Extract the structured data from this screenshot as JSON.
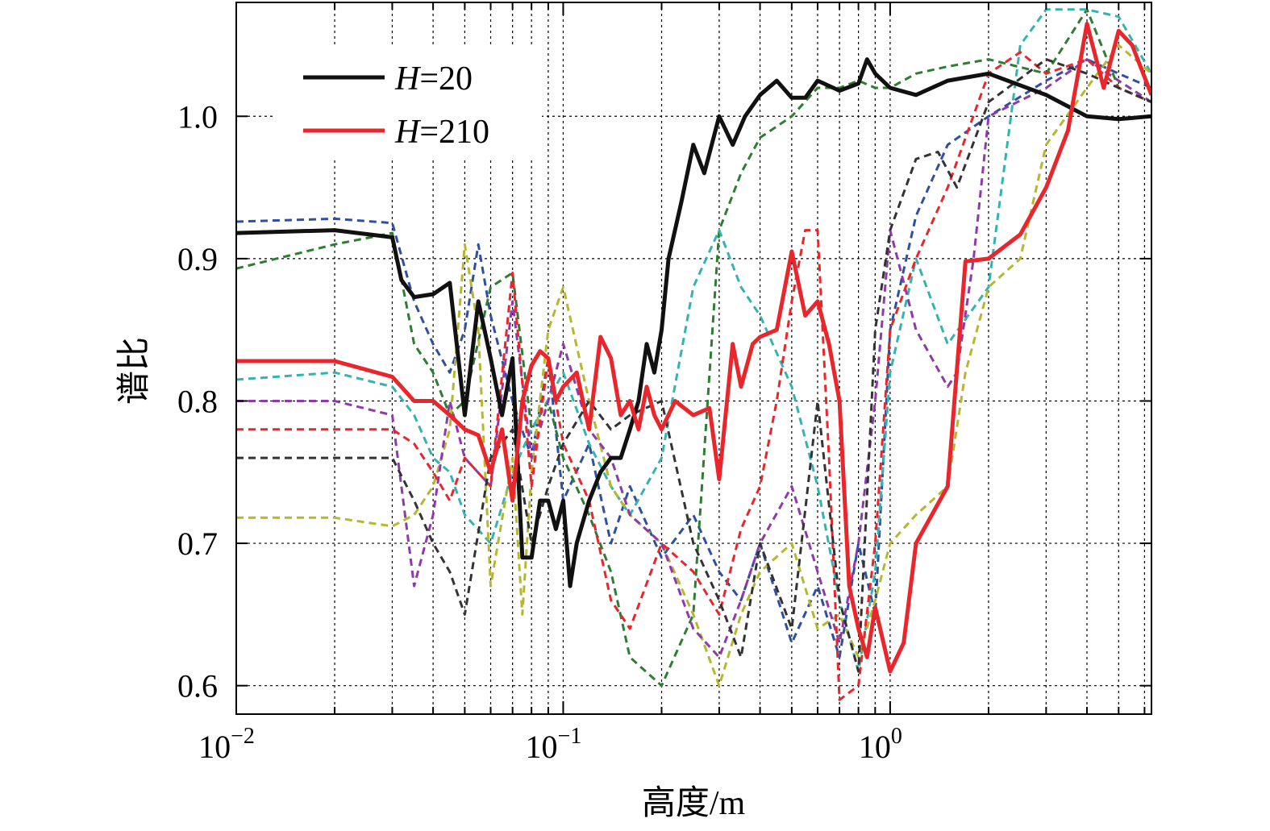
{
  "chart_data": {
    "type": "line",
    "xlabel": "高度/m",
    "ylabel": "谱比",
    "x_scale": "log",
    "xlim": [
      0.01,
      6.3
    ],
    "ylim": [
      0.58,
      1.08
    ],
    "grid": true,
    "legend_position": "top-left",
    "x_ticks": [
      {
        "value": 0.01,
        "base": "10",
        "exp": "−2"
      },
      {
        "value": 0.1,
        "base": "10",
        "exp": "−1"
      },
      {
        "value": 1,
        "base": "10",
        "exp": "0"
      }
    ],
    "y_ticks": [
      {
        "value": 0.6,
        "label": "0.6"
      },
      {
        "value": 0.7,
        "label": "0.7"
      },
      {
        "value": 0.8,
        "label": "0.8"
      },
      {
        "value": 0.9,
        "label": "0.9"
      },
      {
        "value": 1.0,
        "label": "1.0"
      }
    ],
    "series": [
      {
        "name": "H=20",
        "legend_prefix": "H",
        "legend_value": "=20",
        "color": "#111111",
        "style": "solid",
        "x": [
          0.01,
          0.02,
          0.03,
          0.032,
          0.035,
          0.04,
          0.045,
          0.05,
          0.055,
          0.06,
          0.065,
          0.07,
          0.075,
          0.08,
          0.085,
          0.09,
          0.095,
          0.1,
          0.105,
          0.11,
          0.12,
          0.13,
          0.14,
          0.15,
          0.16,
          0.17,
          0.18,
          0.19,
          0.2,
          0.21,
          0.23,
          0.25,
          0.27,
          0.3,
          0.33,
          0.36,
          0.4,
          0.45,
          0.5,
          0.55,
          0.6,
          0.7,
          0.8,
          0.85,
          0.9,
          1.0,
          1.2,
          1.5,
          2.0,
          3.0,
          4.0,
          5.0,
          6.3
        ],
        "y": [
          0.918,
          0.92,
          0.915,
          0.885,
          0.873,
          0.875,
          0.883,
          0.79,
          0.87,
          0.83,
          0.79,
          0.83,
          0.69,
          0.69,
          0.73,
          0.73,
          0.71,
          0.73,
          0.67,
          0.7,
          0.73,
          0.75,
          0.76,
          0.76,
          0.78,
          0.8,
          0.84,
          0.82,
          0.85,
          0.9,
          0.94,
          0.98,
          0.96,
          1.0,
          0.98,
          1.0,
          1.015,
          1.025,
          1.013,
          1.013,
          1.025,
          1.018,
          1.023,
          1.04,
          1.03,
          1.02,
          1.015,
          1.025,
          1.03,
          1.015,
          1.0,
          0.998,
          1.0
        ]
      },
      {
        "name": "H=210",
        "legend_prefix": "H",
        "legend_value": "=210",
        "color": "#e8262b",
        "style": "solid",
        "x": [
          0.01,
          0.02,
          0.03,
          0.035,
          0.04,
          0.045,
          0.05,
          0.055,
          0.06,
          0.065,
          0.07,
          0.075,
          0.08,
          0.085,
          0.09,
          0.095,
          0.1,
          0.11,
          0.12,
          0.13,
          0.14,
          0.15,
          0.16,
          0.17,
          0.18,
          0.19,
          0.2,
          0.22,
          0.25,
          0.28,
          0.3,
          0.33,
          0.35,
          0.38,
          0.4,
          0.45,
          0.5,
          0.55,
          0.6,
          0.65,
          0.7,
          0.75,
          0.8,
          0.85,
          0.9,
          1.0,
          1.1,
          1.2,
          1.5,
          1.7,
          2.0,
          2.5,
          3.0,
          3.5,
          4.0,
          4.5,
          5.0,
          5.5,
          6.3
        ],
        "y": [
          0.828,
          0.828,
          0.817,
          0.8,
          0.8,
          0.79,
          0.78,
          0.776,
          0.75,
          0.78,
          0.73,
          0.8,
          0.825,
          0.835,
          0.83,
          0.8,
          0.81,
          0.82,
          0.78,
          0.845,
          0.83,
          0.79,
          0.8,
          0.78,
          0.81,
          0.79,
          0.78,
          0.8,
          0.79,
          0.795,
          0.745,
          0.84,
          0.81,
          0.84,
          0.845,
          0.85,
          0.905,
          0.86,
          0.87,
          0.84,
          0.8,
          0.67,
          0.64,
          0.62,
          0.655,
          0.61,
          0.63,
          0.7,
          0.74,
          0.898,
          0.9,
          0.917,
          0.95,
          0.99,
          1.065,
          1.02,
          1.06,
          1.05,
          1.015
        ]
      },
      {
        "color": "#2f4fa0",
        "style": "dashed",
        "x": [
          0.01,
          0.02,
          0.03,
          0.035,
          0.04,
          0.045,
          0.05,
          0.055,
          0.06,
          0.07,
          0.08,
          0.09,
          0.1,
          0.12,
          0.14,
          0.16,
          0.2,
          0.25,
          0.3,
          0.35,
          0.4,
          0.5,
          0.6,
          0.7,
          0.8,
          0.9,
          1.0,
          1.2,
          1.5,
          2.0,
          3.0,
          4.0,
          5.0,
          6.3
        ],
        "y": [
          0.926,
          0.928,
          0.925,
          0.87,
          0.84,
          0.82,
          0.85,
          0.91,
          0.86,
          0.8,
          0.76,
          0.83,
          0.73,
          0.77,
          0.7,
          0.74,
          0.69,
          0.72,
          0.68,
          0.66,
          0.7,
          0.63,
          0.67,
          0.62,
          0.7,
          0.65,
          0.85,
          0.93,
          0.98,
          1.0,
          1.025,
          1.04,
          1.03,
          1.02
        ]
      },
      {
        "color": "#2e7d32",
        "style": "dashed",
        "x": [
          0.01,
          0.02,
          0.03,
          0.035,
          0.04,
          0.045,
          0.05,
          0.06,
          0.07,
          0.08,
          0.09,
          0.1,
          0.12,
          0.14,
          0.16,
          0.2,
          0.25,
          0.3,
          0.35,
          0.4,
          0.5,
          0.6,
          0.7,
          0.8,
          0.9,
          1.0,
          1.2,
          1.5,
          2.0,
          3.0,
          4.0,
          5.0,
          6.3
        ],
        "y": [
          0.893,
          0.91,
          0.918,
          0.84,
          0.82,
          0.79,
          0.8,
          0.88,
          0.89,
          0.78,
          0.8,
          0.76,
          0.72,
          0.68,
          0.62,
          0.6,
          0.65,
          0.92,
          0.96,
          0.985,
          1.0,
          1.02,
          1.02,
          1.025,
          1.02,
          1.02,
          1.03,
          1.035,
          1.04,
          1.03,
          1.075,
          1.02,
          1.01
        ]
      },
      {
        "color": "#34b3b0",
        "style": "dashed",
        "x": [
          0.01,
          0.02,
          0.03,
          0.035,
          0.04,
          0.045,
          0.05,
          0.06,
          0.07,
          0.08,
          0.1,
          0.12,
          0.14,
          0.16,
          0.2,
          0.25,
          0.3,
          0.35,
          0.4,
          0.5,
          0.6,
          0.7,
          0.8,
          0.9,
          1.0,
          1.2,
          1.5,
          2.0,
          2.5,
          3.0,
          4.0,
          5.0,
          6.3
        ],
        "y": [
          0.815,
          0.82,
          0.81,
          0.79,
          0.76,
          0.75,
          0.72,
          0.7,
          0.75,
          0.78,
          0.82,
          0.77,
          0.74,
          0.72,
          0.76,
          0.88,
          0.92,
          0.88,
          0.86,
          0.81,
          0.74,
          0.66,
          0.61,
          0.68,
          0.82,
          0.9,
          0.84,
          0.88,
          1.05,
          1.075,
          1.075,
          1.07,
          1.03
        ]
      },
      {
        "color": "#b5b82f",
        "style": "dashed",
        "x": [
          0.01,
          0.02,
          0.03,
          0.035,
          0.04,
          0.045,
          0.05,
          0.055,
          0.06,
          0.07,
          0.075,
          0.08,
          0.09,
          0.1,
          0.12,
          0.14,
          0.16,
          0.2,
          0.25,
          0.3,
          0.35,
          0.4,
          0.5,
          0.6,
          0.7,
          0.8,
          0.9,
          1.0,
          1.2,
          1.5,
          1.7,
          2.0,
          2.5,
          3.0,
          4.0,
          5.0,
          6.3
        ],
        "y": [
          0.718,
          0.718,
          0.712,
          0.72,
          0.74,
          0.78,
          0.91,
          0.85,
          0.67,
          0.76,
          0.65,
          0.75,
          0.85,
          0.88,
          0.8,
          0.74,
          0.72,
          0.7,
          0.65,
          0.6,
          0.65,
          0.68,
          0.7,
          0.64,
          0.65,
          0.62,
          0.66,
          0.7,
          0.72,
          0.74,
          0.82,
          0.88,
          0.9,
          0.98,
          1.02,
          1.05,
          1.03
        ]
      },
      {
        "color": "#8e3aa8",
        "style": "dashed",
        "x": [
          0.01,
          0.02,
          0.03,
          0.035,
          0.04,
          0.045,
          0.05,
          0.06,
          0.07,
          0.08,
          0.09,
          0.1,
          0.12,
          0.14,
          0.16,
          0.2,
          0.25,
          0.3,
          0.35,
          0.4,
          0.5,
          0.6,
          0.7,
          0.8,
          0.9,
          1.0,
          1.2,
          1.5,
          1.6,
          1.8,
          2.0,
          3.0,
          4.0,
          5.0,
          6.3
        ],
        "y": [
          0.8,
          0.8,
          0.79,
          0.67,
          0.72,
          0.8,
          0.76,
          0.74,
          0.87,
          0.76,
          0.8,
          0.84,
          0.78,
          0.76,
          0.72,
          0.7,
          0.64,
          0.62,
          0.66,
          0.7,
          0.74,
          0.68,
          0.63,
          0.7,
          0.8,
          0.92,
          0.85,
          0.81,
          0.82,
          0.9,
          1.0,
          1.02,
          1.04,
          1.025,
          1.01
        ]
      },
      {
        "color": "#e8262b",
        "style": "dashed",
        "x": [
          0.01,
          0.02,
          0.03,
          0.035,
          0.04,
          0.045,
          0.05,
          0.06,
          0.07,
          0.08,
          0.09,
          0.1,
          0.12,
          0.14,
          0.16,
          0.2,
          0.25,
          0.3,
          0.35,
          0.4,
          0.45,
          0.5,
          0.55,
          0.6,
          0.65,
          0.7,
          0.8,
          0.9,
          1.0,
          1.2,
          1.5,
          2.0,
          2.5,
          3.0,
          4.0,
          5.0,
          6.3
        ],
        "y": [
          0.78,
          0.78,
          0.78,
          0.77,
          0.75,
          0.73,
          0.76,
          0.74,
          0.89,
          0.74,
          0.83,
          0.77,
          0.73,
          0.66,
          0.64,
          0.7,
          0.68,
          0.65,
          0.71,
          0.74,
          0.8,
          0.87,
          0.92,
          0.92,
          0.76,
          0.59,
          0.6,
          0.7,
          0.85,
          0.9,
          0.95,
          1.03,
          1.045,
          1.03,
          1.04,
          1.02,
          1.01
        ]
      },
      {
        "color": "#333333",
        "style": "dashed",
        "x": [
          0.01,
          0.02,
          0.03,
          0.035,
          0.04,
          0.045,
          0.05,
          0.06,
          0.07,
          0.08,
          0.09,
          0.1,
          0.12,
          0.14,
          0.16,
          0.2,
          0.25,
          0.3,
          0.35,
          0.4,
          0.5,
          0.6,
          0.7,
          0.8,
          0.9,
          1.0,
          1.2,
          1.4,
          1.6,
          2.0,
          3.0,
          4.0,
          5.0,
          6.3
        ],
        "y": [
          0.76,
          0.76,
          0.76,
          0.73,
          0.7,
          0.68,
          0.65,
          0.76,
          0.78,
          0.7,
          0.74,
          0.77,
          0.8,
          0.78,
          0.79,
          0.8,
          0.7,
          0.66,
          0.62,
          0.7,
          0.64,
          0.8,
          0.66,
          0.61,
          0.85,
          0.92,
          0.97,
          0.975,
          0.95,
          1.01,
          1.04,
          1.03,
          1.02,
          1.01
        ]
      }
    ]
  }
}
